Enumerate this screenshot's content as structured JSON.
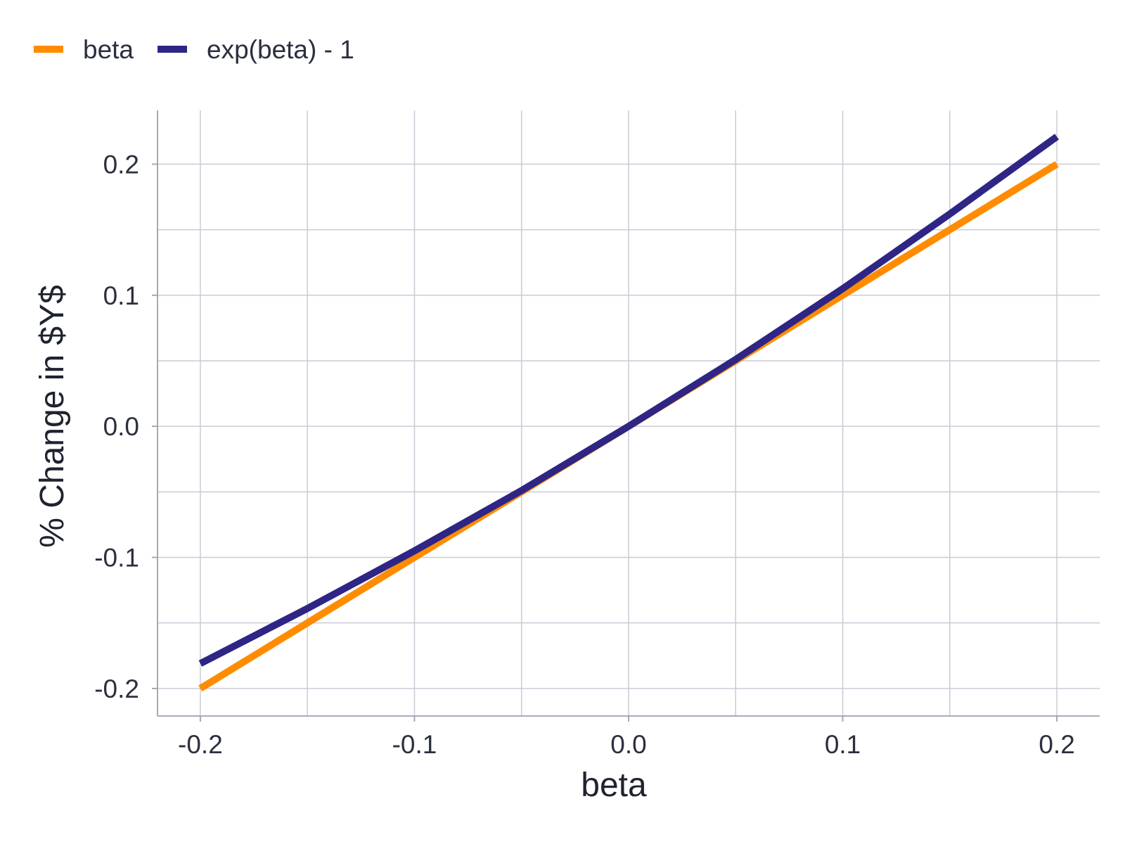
{
  "chart_data": {
    "type": "line",
    "title": "",
    "xlabel": "beta",
    "ylabel": "% Change in $Y$",
    "xlim": [
      -0.22,
      0.22
    ],
    "ylim": [
      -0.221,
      0.241
    ],
    "x_ticks": [
      -0.2,
      -0.1,
      0.0,
      0.1,
      0.2
    ],
    "x_tick_labels": [
      "-0.2",
      "-0.1",
      "0.0",
      "0.1",
      "0.2"
    ],
    "y_ticks": [
      -0.2,
      -0.1,
      0.0,
      0.1,
      0.2
    ],
    "y_tick_labels": [
      "-0.2",
      "-0.1",
      "0.0",
      "0.1",
      "0.2"
    ],
    "x_minor_gridlines": [
      -0.15,
      -0.05,
      0.05,
      0.15
    ],
    "y_minor_gridlines": [
      -0.15,
      -0.05,
      0.05,
      0.15
    ],
    "grid": true,
    "legend_position": "top-left",
    "x": [
      -0.2,
      -0.15,
      -0.1,
      -0.05,
      0.0,
      0.05,
      0.1,
      0.15,
      0.2
    ],
    "series": [
      {
        "name": "beta",
        "color": "#ff8c00",
        "values": [
          -0.2,
          -0.15,
          -0.1,
          -0.05,
          0.0,
          0.05,
          0.1,
          0.15,
          0.2
        ]
      },
      {
        "name": "exp(beta) - 1",
        "color": "#2e2585",
        "values": [
          -0.181,
          -0.139,
          -0.095,
          -0.049,
          0.0,
          0.051,
          0.105,
          0.162,
          0.221
        ]
      }
    ]
  }
}
